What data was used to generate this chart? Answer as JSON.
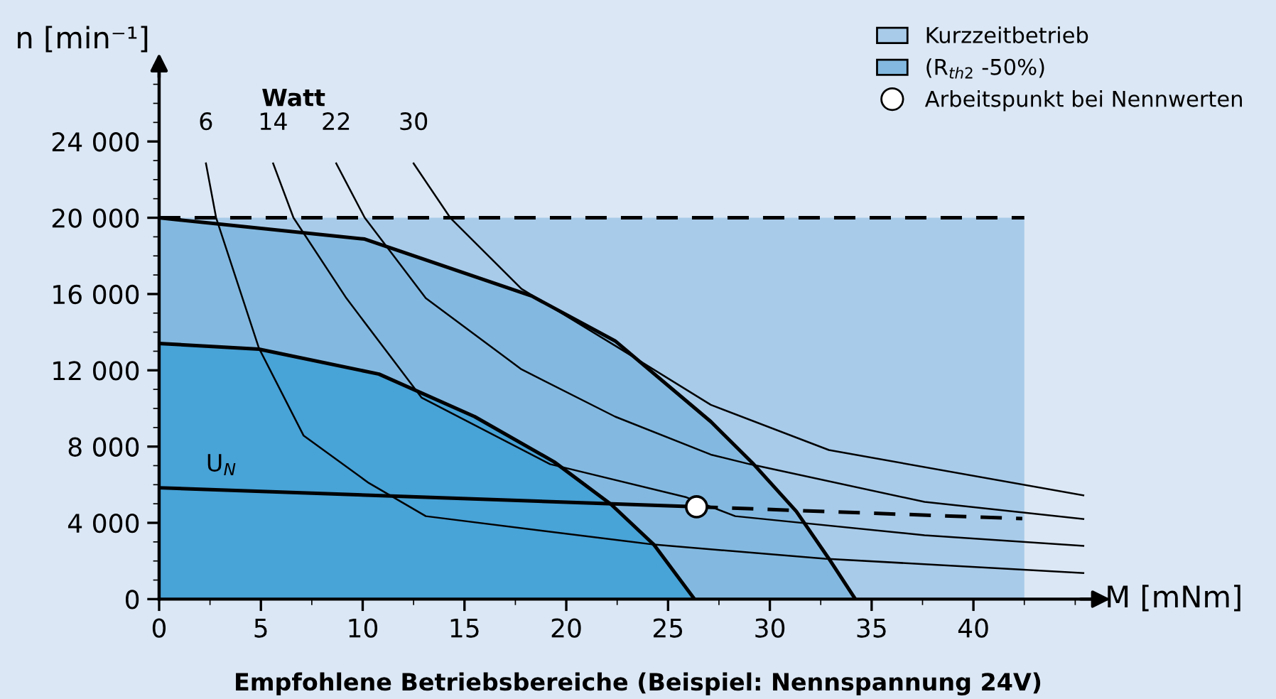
{
  "chart_data": {
    "type": "line",
    "xlabel": "M [mNm]",
    "ylabel": "n [min⁻¹]",
    "legend": "top right",
    "xlim": [
      0,
      46
    ],
    "ylim": [
      0,
      28000
    ],
    "xticks": [
      0,
      5,
      10,
      15,
      20,
      25,
      30,
      35,
      40
    ],
    "yticks": [
      0,
      {
        "value": 4000,
        "label": "4 000"
      },
      {
        "value": 8000,
        "label": "8 000"
      },
      {
        "value": 12000,
        "label": "12 000"
      },
      {
        "value": 16000,
        "label": "16 000"
      },
      {
        "value": 20000,
        "label": "20 000"
      },
      {
        "value": 24000,
        "label": "24 000"
      }
    ],
    "annotations": [
      "Watt",
      "Empfohlene Betriebsbereiche (Beispiel: Nennspannung 24V)"
    ],
    "series": [
      {
        "name": "Kurzzeitbetrieb",
        "type": "area",
        "color": "#a8cbe9",
        "line_style": "dashed",
        "x": [
          0,
          42.5
        ],
        "values": [
          20000,
          20000
        ]
      },
      {
        "name": "(R$_{th2}$ -50%)",
        "type": "area",
        "color": "#83b9e0",
        "x": [
          0,
          10.1,
          18.3,
          22.4,
          27.1,
          29.2,
          31.3,
          32.9,
          34.2
        ],
        "values": [
          20000,
          18880,
          15900,
          13540,
          9310,
          7080,
          4600,
          2120,
          0
        ]
      },
      {
        "type": "area",
        "color": "#48a3d7",
        "x": [
          0,
          4.9,
          10.8,
          15.5,
          19.4,
          22.2,
          24.3,
          26.3
        ],
        "values": [
          13410,
          13110,
          11800,
          9570,
          7200,
          4970,
          2860,
          0
        ]
      },
      {
        "name": "6",
        "color": "#000000",
        "x": [
          2.3,
          2.8,
          4.9,
          7.1,
          10.3,
          13.1,
          24.3,
          32.7,
          45.4
        ],
        "values": [
          22850,
          20000,
          13170,
          8570,
          6090,
          4350,
          2860,
          2120,
          1370
        ]
      },
      {
        "name": "14",
        "color": "#000000",
        "x": [
          5.6,
          6.6,
          9.2,
          12.9,
          19.2,
          25.9,
          28.3,
          37.6,
          45.4
        ],
        "values": [
          22850,
          20000,
          15780,
          10560,
          7080,
          5340,
          4350,
          3350,
          2790
        ]
      },
      {
        "name": "22",
        "color": "#000000",
        "x": [
          8.7,
          10.1,
          13.1,
          17.8,
          22.4,
          27.1,
          29.0,
          37.6,
          45.4
        ],
        "values": [
          22850,
          20000,
          15780,
          12050,
          9570,
          7580,
          7080,
          5100,
          4200
        ]
      },
      {
        "name": "30",
        "color": "#000000",
        "x": [
          12.5,
          14.3,
          17.8,
          22.4,
          27.1,
          32.9,
          45.4
        ],
        "values": [
          22850,
          20000,
          16270,
          13290,
          10190,
          7820,
          5440
        ]
      },
      {
        "name": "U$_{N}$",
        "color": "#000000",
        "line_style": "solid",
        "x": [
          0,
          26.4
        ],
        "values": [
          5840,
          4840
        ]
      },
      {
        "color": "#000000",
        "line_style": "dashed",
        "x": [
          26.4,
          42.4
        ],
        "values": [
          4840,
          4220
        ]
      },
      {
        "name": "Arbeitspunkt bei Nennwerten",
        "type": "scatter",
        "marker": "circle",
        "color": "#ffffff",
        "x": [
          26.4
        ],
        "values": [
          4840
        ]
      }
    ]
  }
}
